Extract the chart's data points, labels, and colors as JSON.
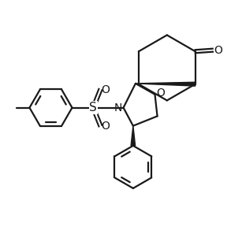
{
  "bg_color": "#ffffff",
  "line_color": "#1a1a1a",
  "line_width": 1.6,
  "figsize": [
    3.07,
    3.07
  ],
  "dpi": 100,
  "xlim": [
    0,
    10
  ],
  "ylim": [
    0,
    10
  ]
}
